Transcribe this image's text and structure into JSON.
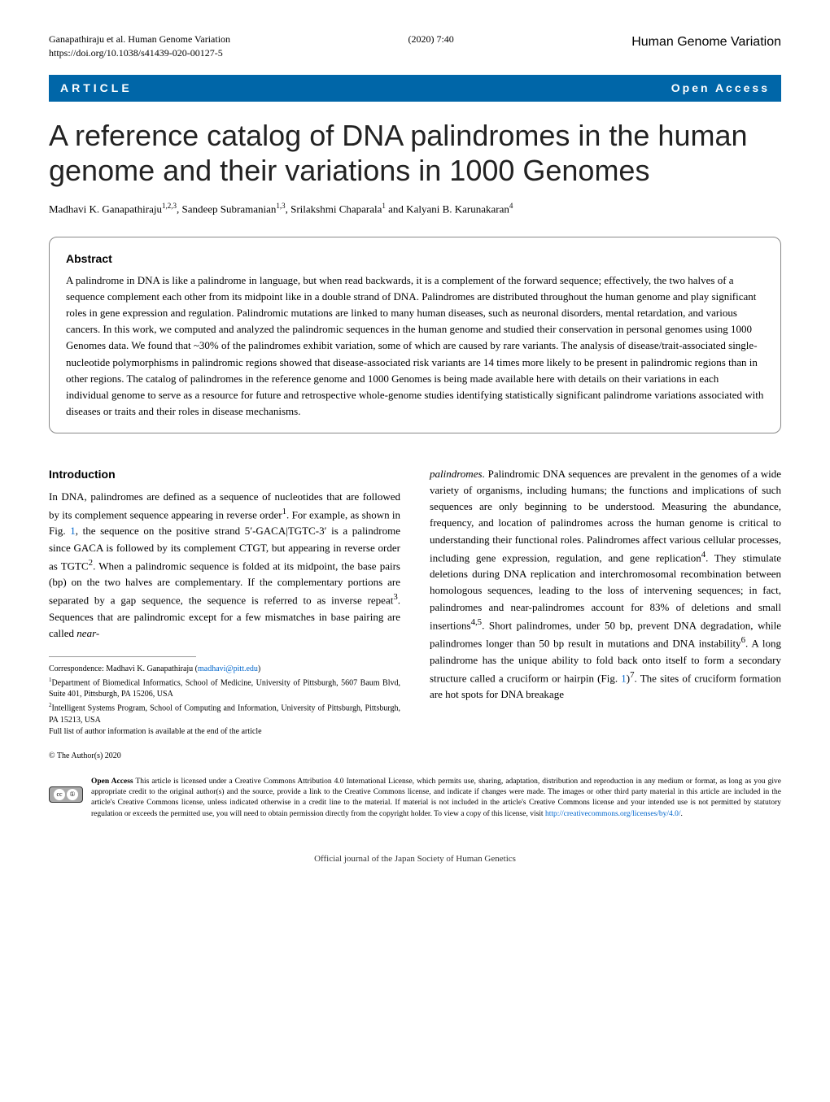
{
  "header": {
    "citation": "Ganapathiraju et al. Human Genome Variation",
    "doi": "https://doi.org/10.1038/s41439-020-00127-5",
    "issue": "(2020) 7:40",
    "journal": "Human Genome Variation"
  },
  "banner": {
    "article_label": "ARTICLE",
    "open_access": "Open Access"
  },
  "title": "A reference catalog of DNA palindromes in the human genome and their variations in 1000 Genomes",
  "authors_html": "Madhavi K. Ganapathiraju<sup>1,2,3</sup>, Sandeep Subramanian<sup>1,3</sup>, Srilakshmi Chaparala<sup>1</sup> and Kalyani B. Karunakaran<sup>4</sup>",
  "abstract": {
    "heading": "Abstract",
    "text": "A palindrome in DNA is like a palindrome in language, but when read backwards, it is a complement of the forward sequence; effectively, the two halves of a sequence complement each other from its midpoint like in a double strand of DNA. Palindromes are distributed throughout the human genome and play significant roles in gene expression and regulation. Palindromic mutations are linked to many human diseases, such as neuronal disorders, mental retardation, and various cancers. In this work, we computed and analyzed the palindromic sequences in the human genome and studied their conservation in personal genomes using 1000 Genomes data. We found that ~30% of the palindromes exhibit variation, some of which are caused by rare variants. The analysis of disease/trait-associated single-nucleotide polymorphisms in palindromic regions showed that disease-associated risk variants are 14 times more likely to be present in palindromic regions than in other regions. The catalog of palindromes in the reference genome and 1000 Genomes is being made available here with details on their variations in each individual genome to serve as a resource for future and retrospective whole-genome studies identifying statistically significant palindrome variations associated with diseases or traits and their roles in disease mechanisms."
  },
  "introduction": {
    "heading": "Introduction",
    "left_para": "In DNA, palindromes are defined as a sequence of nucleotides that are followed by its complement sequence appearing in reverse order<sup>1</sup>. For example, as shown in Fig. <span class='link'>1</span>, the sequence on the positive strand 5′-GACA|TGTC-3′ is a palindrome since GACA is followed by its complement CTGT, but appearing in reverse order as TGTC<sup>2</sup>. When a palindromic sequence is folded at its midpoint, the base pairs (bp) on the two halves are complementary. If the complementary portions are separated by a gap sequence, the sequence is referred to as inverse repeat<sup>3</sup>. Sequences that are palindromic except for a few mismatches in base pairing are called <span class='italic'>near-</span>",
    "right_para": "<span class='italic'>palindromes</span>. Palindromic DNA sequences are prevalent in the genomes of a wide variety of organisms, including humans; the functions and implications of such sequences are only beginning to be understood. Measuring the abundance, frequency, and location of palindromes across the human genome is critical to understanding their functional roles. Palindromes affect various cellular processes, including gene expression, regulation, and gene replication<sup>4</sup>. They stimulate deletions during DNA replication and interchromosomal recombination between homologous sequences, leading to the loss of intervening sequences; in fact, palindromes and near-palindromes account for 83% of deletions and small insertions<sup>4,5</sup>. Short palindromes, under 50 bp, prevent DNA degradation, while palindromes longer than 50 bp result in mutations and DNA instability<sup>6</sup>. A long palindrome has the unique ability to fold back onto itself to form a secondary structure called a cruciform or hairpin (Fig. <span class='link'>1</span>)<sup>7</sup>. The sites of cruciform formation are hot spots for DNA breakage"
  },
  "correspondence": {
    "line1": "Correspondence: Madhavi K. Ganapathiraju (<span class='link'>madhavi@pitt.edu</span>)",
    "aff1": "<sup>1</sup>Department of Biomedical Informatics, School of Medicine, University of Pittsburgh, 5607 Baum Blvd, Suite 401, Pittsburgh, PA 15206, USA",
    "aff2": "<sup>2</sup>Intelligent Systems Program, School of Computing and Information, University of Pittsburgh, Pittsburgh, PA 15213, USA",
    "full_list": "Full list of author information is available at the end of the article"
  },
  "copyright": "© The Author(s) 2020",
  "license": "<b>Open Access</b> This article is licensed under a Creative Commons Attribution 4.0 International License, which permits use, sharing, adaptation, distribution and reproduction in any medium or format, as long as you give appropriate credit to the original author(s) and the source, provide a link to the Creative Commons license, and indicate if changes were made. The images or other third party material in this article are included in the article's Creative Commons license, unless indicated otherwise in a credit line to the material. If material is not included in the article's Creative Commons license and your intended use is not permitted by statutory regulation or exceeds the permitted use, you will need to obtain permission directly from the copyright holder. To view a copy of this license, visit <span class='link'>http://creativecommons.org/licenses/by/4.0/</span>.",
  "footer": "Official journal of the Japan Society of Human Genetics",
  "colors": {
    "banner_bg": "#0066a8",
    "link_color": "#0066cc"
  },
  "typography": {
    "title_fontsize": 36,
    "body_fontsize": 13,
    "abstract_fontsize": 13,
    "header_fontsize": 12,
    "correspondence_fontsize": 10,
    "license_fontsize": 9.5
  }
}
